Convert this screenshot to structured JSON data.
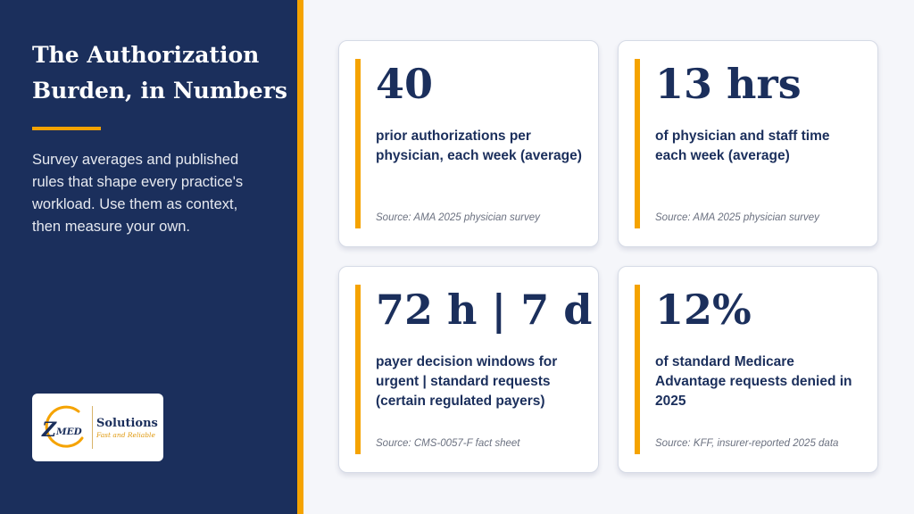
{
  "sidebar": {
    "title_lines": [
      "The Authorization",
      "Burden, in Numbers"
    ],
    "subtitle_lines": [
      "Survey averages and published",
      "rules that shape every practice's",
      "workload. Use them as context,",
      "then measure your own."
    ],
    "logo": {
      "mark": "Z",
      "mark_text": "MED",
      "name": "Solutions",
      "tagline": "Fast and Reliable"
    }
  },
  "stats": [
    {
      "value": "40",
      "description_lines": [
        "prior authorizations per",
        "physician, each week (average)"
      ],
      "source": "Source: AMA 2025 physician survey"
    },
    {
      "value": "13 hrs",
      "description_lines": [
        "of physician and staff time",
        "each week (average)"
      ],
      "source": "Source: AMA 2025 physician survey"
    },
    {
      "value": "72 h | 7 d",
      "description_lines": [
        "payer decision windows for",
        "urgent | standard requests",
        "(certain regulated payers)"
      ],
      "source": "Source: CMS-0057-F fact sheet"
    },
    {
      "value": "12%",
      "description_lines": [
        "of standard Medicare",
        "Advantage requests denied in",
        "2025"
      ],
      "source": "Source: KFF, insurer-reported 2025 data"
    }
  ],
  "colors": {
    "navy": "#1b2f5c",
    "gold": "#f5a300",
    "card_background": "#ffffff",
    "page_background": "#f5f6fa"
  },
  "icons": {
    "logo": "zmed-logo-icon"
  }
}
